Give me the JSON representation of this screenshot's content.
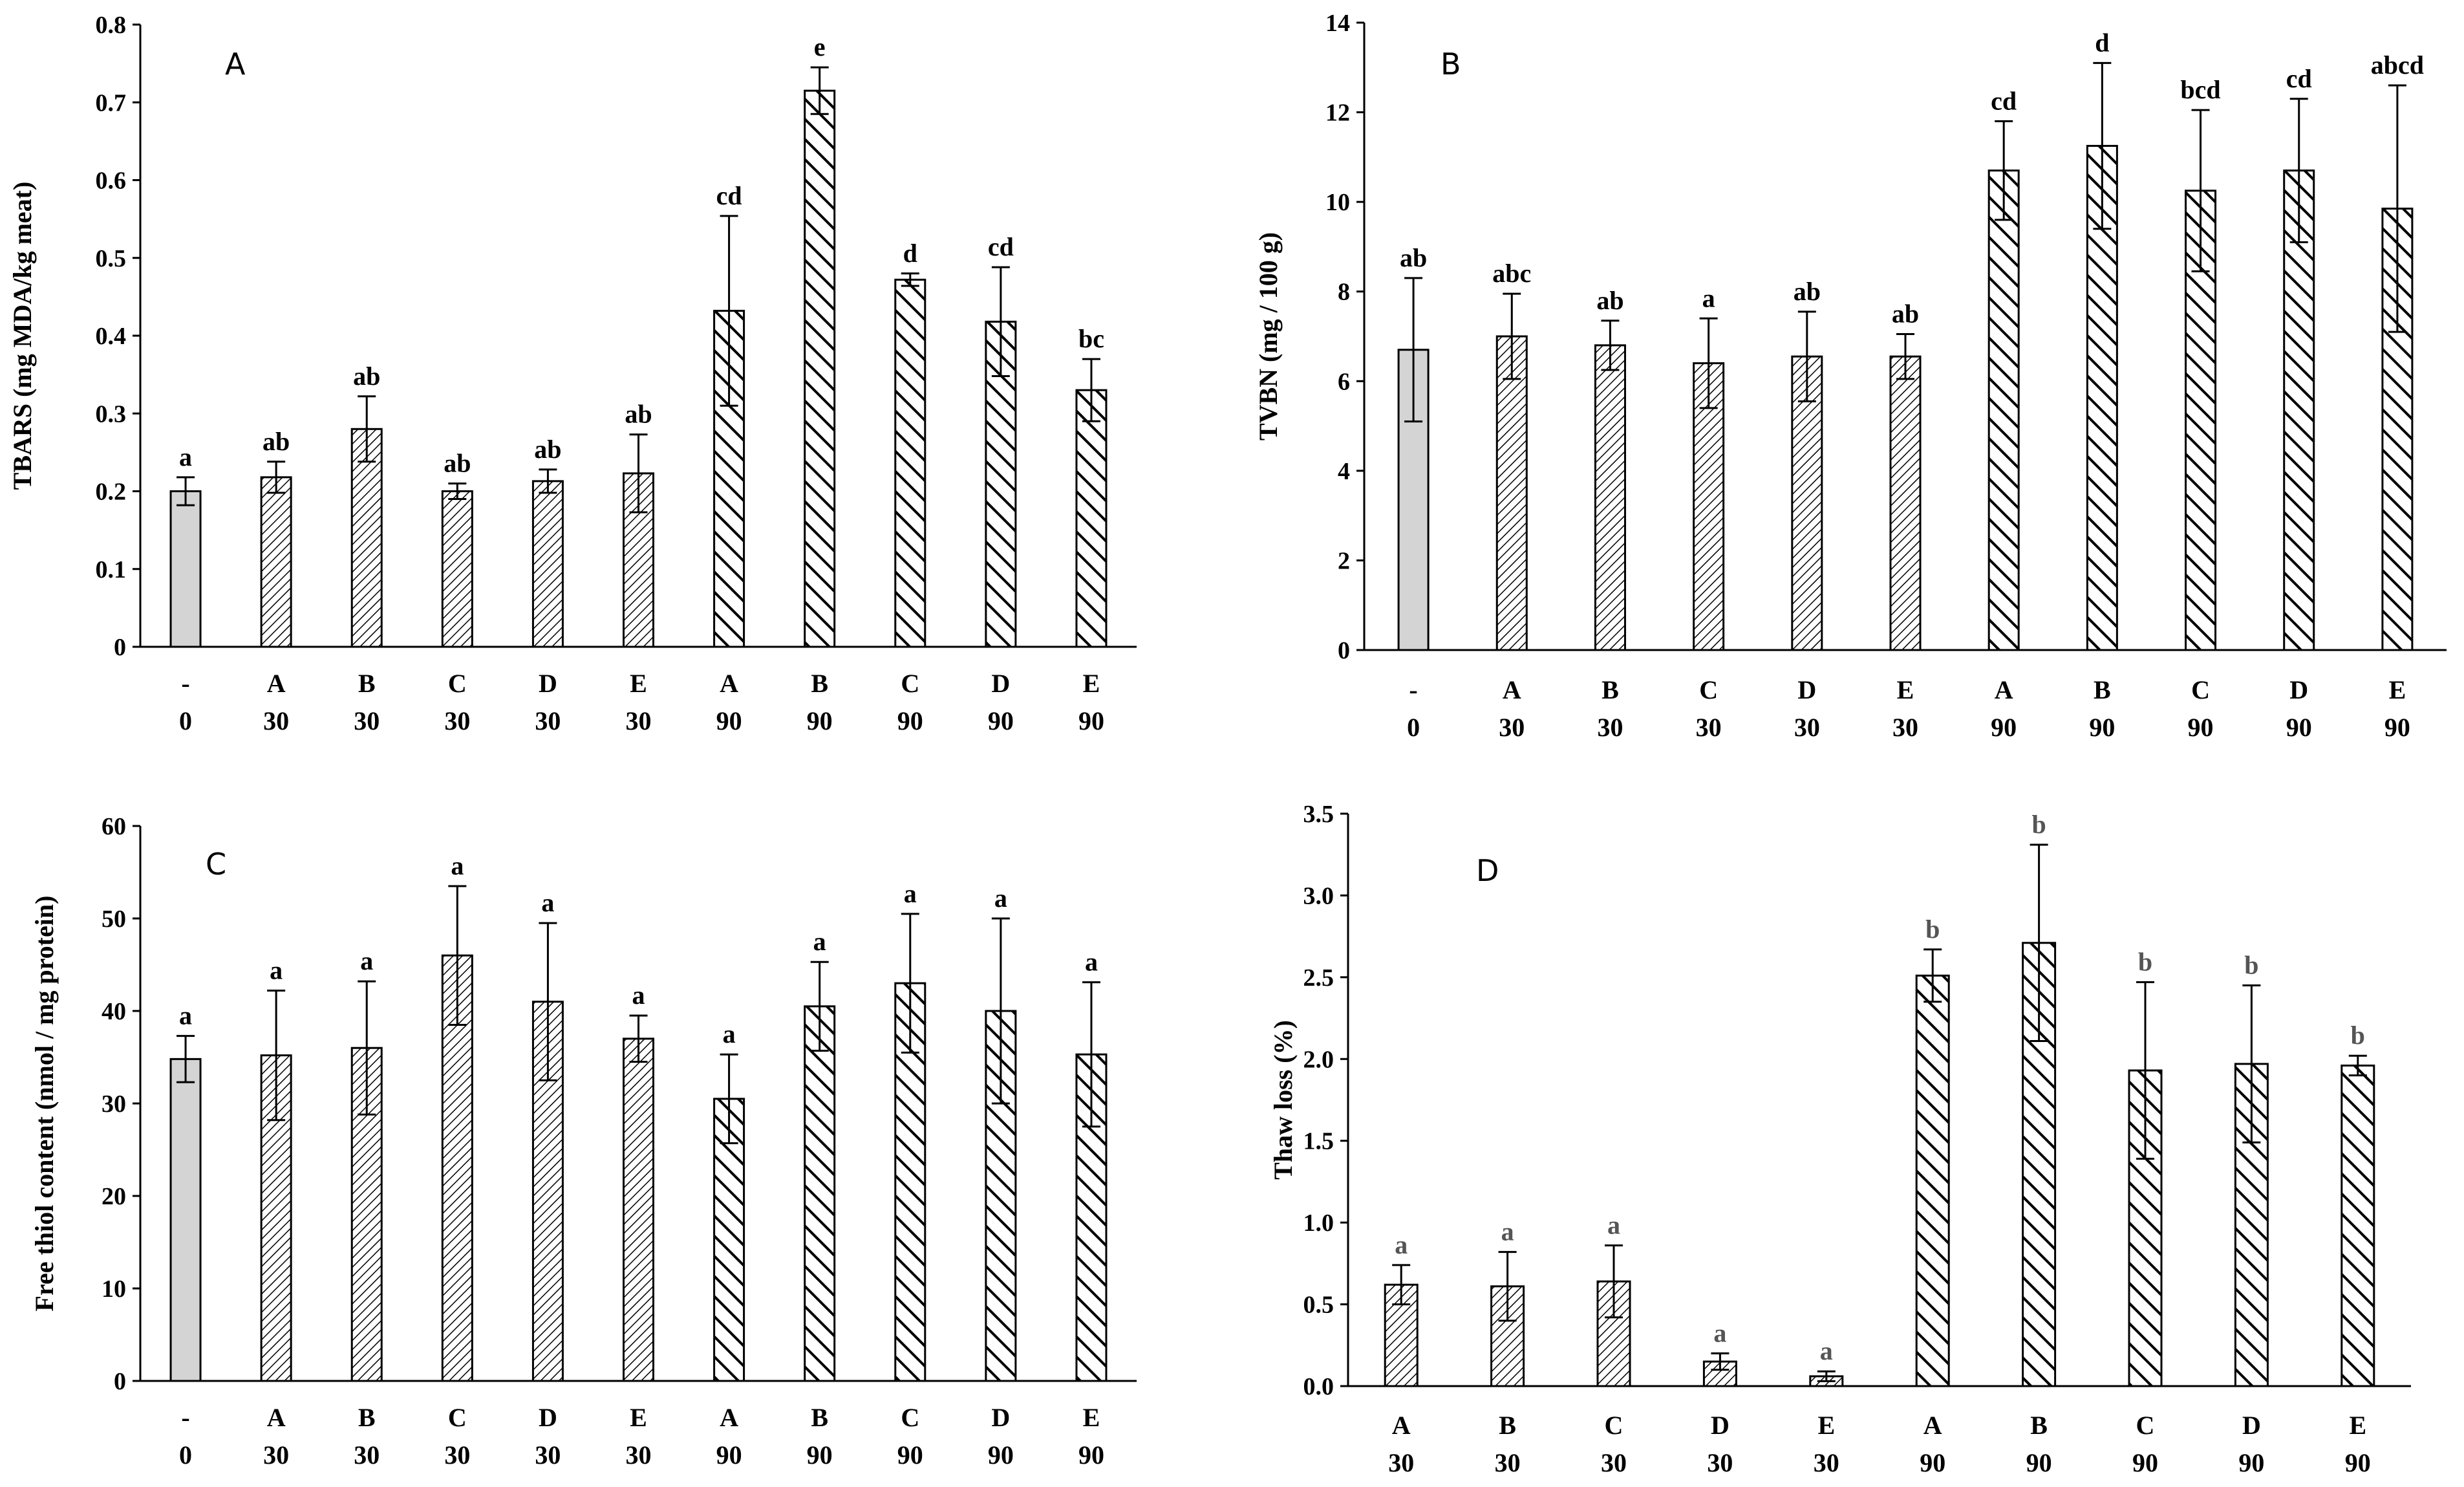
{
  "colors": {
    "control_fill": "#d4d4d4",
    "axis": "#000000",
    "bar_edge": "#000000"
  },
  "chart_data": [
    {
      "type": "bar",
      "panel_label": "A",
      "ylabel": "TBARS (mg MDA/kg meat)",
      "ylim": [
        0,
        0.8
      ],
      "yticks": [
        "0",
        "0.1",
        "0.2",
        "0.3",
        "0.4",
        "0.5",
        "0.6",
        "0.7",
        "0.8"
      ],
      "categories": [
        {
          "treatment": "-",
          "day": "0",
          "pattern": "control"
        },
        {
          "treatment": "A",
          "day": "30",
          "pattern": "fine"
        },
        {
          "treatment": "B",
          "day": "30",
          "pattern": "fine"
        },
        {
          "treatment": "C",
          "day": "30",
          "pattern": "fine"
        },
        {
          "treatment": "D",
          "day": "30",
          "pattern": "fine"
        },
        {
          "treatment": "E",
          "day": "30",
          "pattern": "fine"
        },
        {
          "treatment": "A",
          "day": "90",
          "pattern": "bold"
        },
        {
          "treatment": "B",
          "day": "90",
          "pattern": "bold"
        },
        {
          "treatment": "C",
          "day": "90",
          "pattern": "bold"
        },
        {
          "treatment": "D",
          "day": "90",
          "pattern": "bold"
        },
        {
          "treatment": "E",
          "day": "90",
          "pattern": "bold"
        }
      ],
      "values": [
        0.2,
        0.218,
        0.28,
        0.2,
        0.213,
        0.223,
        0.432,
        0.715,
        0.472,
        0.418,
        0.33
      ],
      "errors": [
        0.018,
        0.02,
        0.042,
        0.01,
        0.015,
        0.05,
        0.122,
        0.03,
        0.008,
        0.07,
        0.04
      ],
      "letters": [
        "a",
        "ab",
        "ab",
        "ab",
        "ab",
        "ab",
        "cd",
        "e",
        "d",
        "cd",
        "bc"
      ]
    },
    {
      "type": "bar",
      "panel_label": "B",
      "ylabel": "TVBN (mg / 100 g)",
      "ylim": [
        0,
        14
      ],
      "yticks": [
        "0",
        "2",
        "4",
        "6",
        "8",
        "10",
        "12",
        "14"
      ],
      "categories": [
        {
          "treatment": "-",
          "day": "0",
          "pattern": "control"
        },
        {
          "treatment": "A",
          "day": "30",
          "pattern": "fine"
        },
        {
          "treatment": "B",
          "day": "30",
          "pattern": "fine"
        },
        {
          "treatment": "C",
          "day": "30",
          "pattern": "fine"
        },
        {
          "treatment": "D",
          "day": "30",
          "pattern": "fine"
        },
        {
          "treatment": "E",
          "day": "30",
          "pattern": "fine"
        },
        {
          "treatment": "A",
          "day": "90",
          "pattern": "bold"
        },
        {
          "treatment": "B",
          "day": "90",
          "pattern": "bold"
        },
        {
          "treatment": "C",
          "day": "90",
          "pattern": "bold"
        },
        {
          "treatment": "D",
          "day": "90",
          "pattern": "bold"
        },
        {
          "treatment": "E",
          "day": "90",
          "pattern": "bold"
        }
      ],
      "values": [
        6.7,
        7.0,
        6.8,
        6.4,
        6.55,
        6.55,
        10.7,
        11.25,
        10.25,
        10.7,
        9.85
      ],
      "errors": [
        1.6,
        0.95,
        0.55,
        1.0,
        1.0,
        0.5,
        1.1,
        1.85,
        1.8,
        1.6,
        2.75
      ],
      "letters": [
        "ab",
        "abc",
        "ab",
        "a",
        "ab",
        "ab",
        "cd",
        "d",
        "bcd",
        "cd",
        "abcd"
      ]
    },
    {
      "type": "bar",
      "panel_label": "C",
      "ylabel": "Free thiol content (nmol / mg protein)",
      "ylim": [
        0,
        60
      ],
      "yticks": [
        "0",
        "10",
        "20",
        "30",
        "40",
        "50",
        "60"
      ],
      "categories": [
        {
          "treatment": "-",
          "day": "0",
          "pattern": "control"
        },
        {
          "treatment": "A",
          "day": "30",
          "pattern": "fine"
        },
        {
          "treatment": "B",
          "day": "30",
          "pattern": "fine"
        },
        {
          "treatment": "C",
          "day": "30",
          "pattern": "fine"
        },
        {
          "treatment": "D",
          "day": "30",
          "pattern": "fine"
        },
        {
          "treatment": "E",
          "day": "30",
          "pattern": "fine"
        },
        {
          "treatment": "A",
          "day": "90",
          "pattern": "bold"
        },
        {
          "treatment": "B",
          "day": "90",
          "pattern": "bold"
        },
        {
          "treatment": "C",
          "day": "90",
          "pattern": "bold"
        },
        {
          "treatment": "D",
          "day": "90",
          "pattern": "bold"
        },
        {
          "treatment": "E",
          "day": "90",
          "pattern": "bold"
        }
      ],
      "values": [
        34.8,
        35.2,
        36.0,
        46.0,
        41.0,
        37.0,
        30.5,
        40.5,
        43.0,
        40.0,
        35.3
      ],
      "errors": [
        2.5,
        7.0,
        7.2,
        7.5,
        8.5,
        2.5,
        4.8,
        4.8,
        7.5,
        10.0,
        7.8
      ],
      "letters": [
        "a",
        "a",
        "a",
        "a",
        "a",
        "a",
        "a",
        "a",
        "a",
        "a",
        "a"
      ]
    },
    {
      "type": "bar",
      "panel_label": "D",
      "ylabel": "Thaw loss (%)",
      "ylim": [
        0,
        3.5
      ],
      "yticks": [
        "0.0",
        "0.5",
        "1.0",
        "1.5",
        "2.0",
        "2.5",
        "3.0",
        "3.5"
      ],
      "categories": [
        {
          "treatment": "A",
          "day": "30",
          "pattern": "fine"
        },
        {
          "treatment": "B",
          "day": "30",
          "pattern": "fine"
        },
        {
          "treatment": "C",
          "day": "30",
          "pattern": "fine"
        },
        {
          "treatment": "D",
          "day": "30",
          "pattern": "fine"
        },
        {
          "treatment": "E",
          "day": "30",
          "pattern": "fine"
        },
        {
          "treatment": "A",
          "day": "90",
          "pattern": "bold"
        },
        {
          "treatment": "B",
          "day": "90",
          "pattern": "bold"
        },
        {
          "treatment": "C",
          "day": "90",
          "pattern": "bold"
        },
        {
          "treatment": "D",
          "day": "90",
          "pattern": "bold"
        },
        {
          "treatment": "E",
          "day": "90",
          "pattern": "bold"
        }
      ],
      "values": [
        0.62,
        0.61,
        0.64,
        0.15,
        0.06,
        2.51,
        2.71,
        1.93,
        1.97,
        1.96
      ],
      "errors": [
        0.12,
        0.21,
        0.22,
        0.05,
        0.03,
        0.16,
        0.6,
        0.54,
        0.48,
        0.06
      ],
      "letters": [
        "a",
        "a",
        "a",
        "a",
        "a",
        "b",
        "b",
        "b",
        "b",
        "b"
      ],
      "letter_style": "light"
    }
  ]
}
